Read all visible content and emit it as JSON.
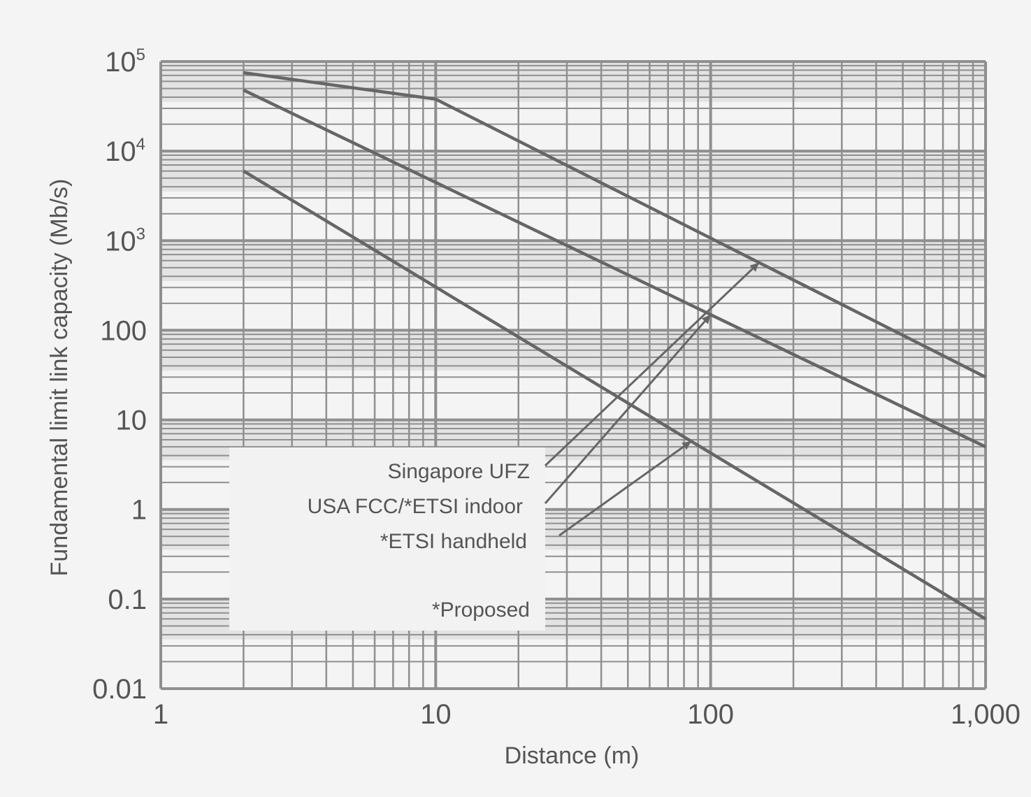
{
  "chart_data": {
    "type": "line",
    "xlabel": "Distance (m)",
    "ylabel": "Fundamental limit link capacity (Mb/s)",
    "x_scale": "log",
    "y_scale": "log",
    "xlim": [
      1,
      1000
    ],
    "ylim": [
      0.01,
      100000
    ],
    "grid": true,
    "x_ticks": [
      {
        "value": 1,
        "label": "1"
      },
      {
        "value": 10,
        "label": "10"
      },
      {
        "value": 100,
        "label": "100"
      },
      {
        "value": 1000,
        "label": "1,000"
      }
    ],
    "y_ticks": [
      {
        "value": 0.01,
        "label": "0.01"
      },
      {
        "value": 0.1,
        "label": "0.1"
      },
      {
        "value": 1,
        "label": "1"
      },
      {
        "value": 10,
        "label": "10"
      },
      {
        "value": 100,
        "label": "100"
      },
      {
        "value": 1000,
        "base": "10",
        "exp": "3"
      },
      {
        "value": 10000,
        "base": "10",
        "exp": "4"
      },
      {
        "value": 100000,
        "base": "10",
        "exp": "5"
      }
    ],
    "series": [
      {
        "name": "Singapore UFZ",
        "x": [
          2,
          4,
          10,
          1000
        ],
        "y": [
          75000,
          56000,
          38000,
          30
        ],
        "color": "#666666"
      },
      {
        "name": "USA FCC/*ETSI indoor",
        "x": [
          2,
          1000
        ],
        "y": [
          48000,
          5
        ],
        "color": "#666666"
      },
      {
        "name": "*ETSI handheld",
        "x": [
          2,
          1000
        ],
        "y": [
          6000,
          0.06
        ],
        "color": "#666666"
      }
    ],
    "note": "*Proposed"
  },
  "colors": {
    "background": "#f4f4f4",
    "grid": "#8f8f8f",
    "band": "#d5d5d5",
    "line": "#666666",
    "text": "#555555"
  }
}
